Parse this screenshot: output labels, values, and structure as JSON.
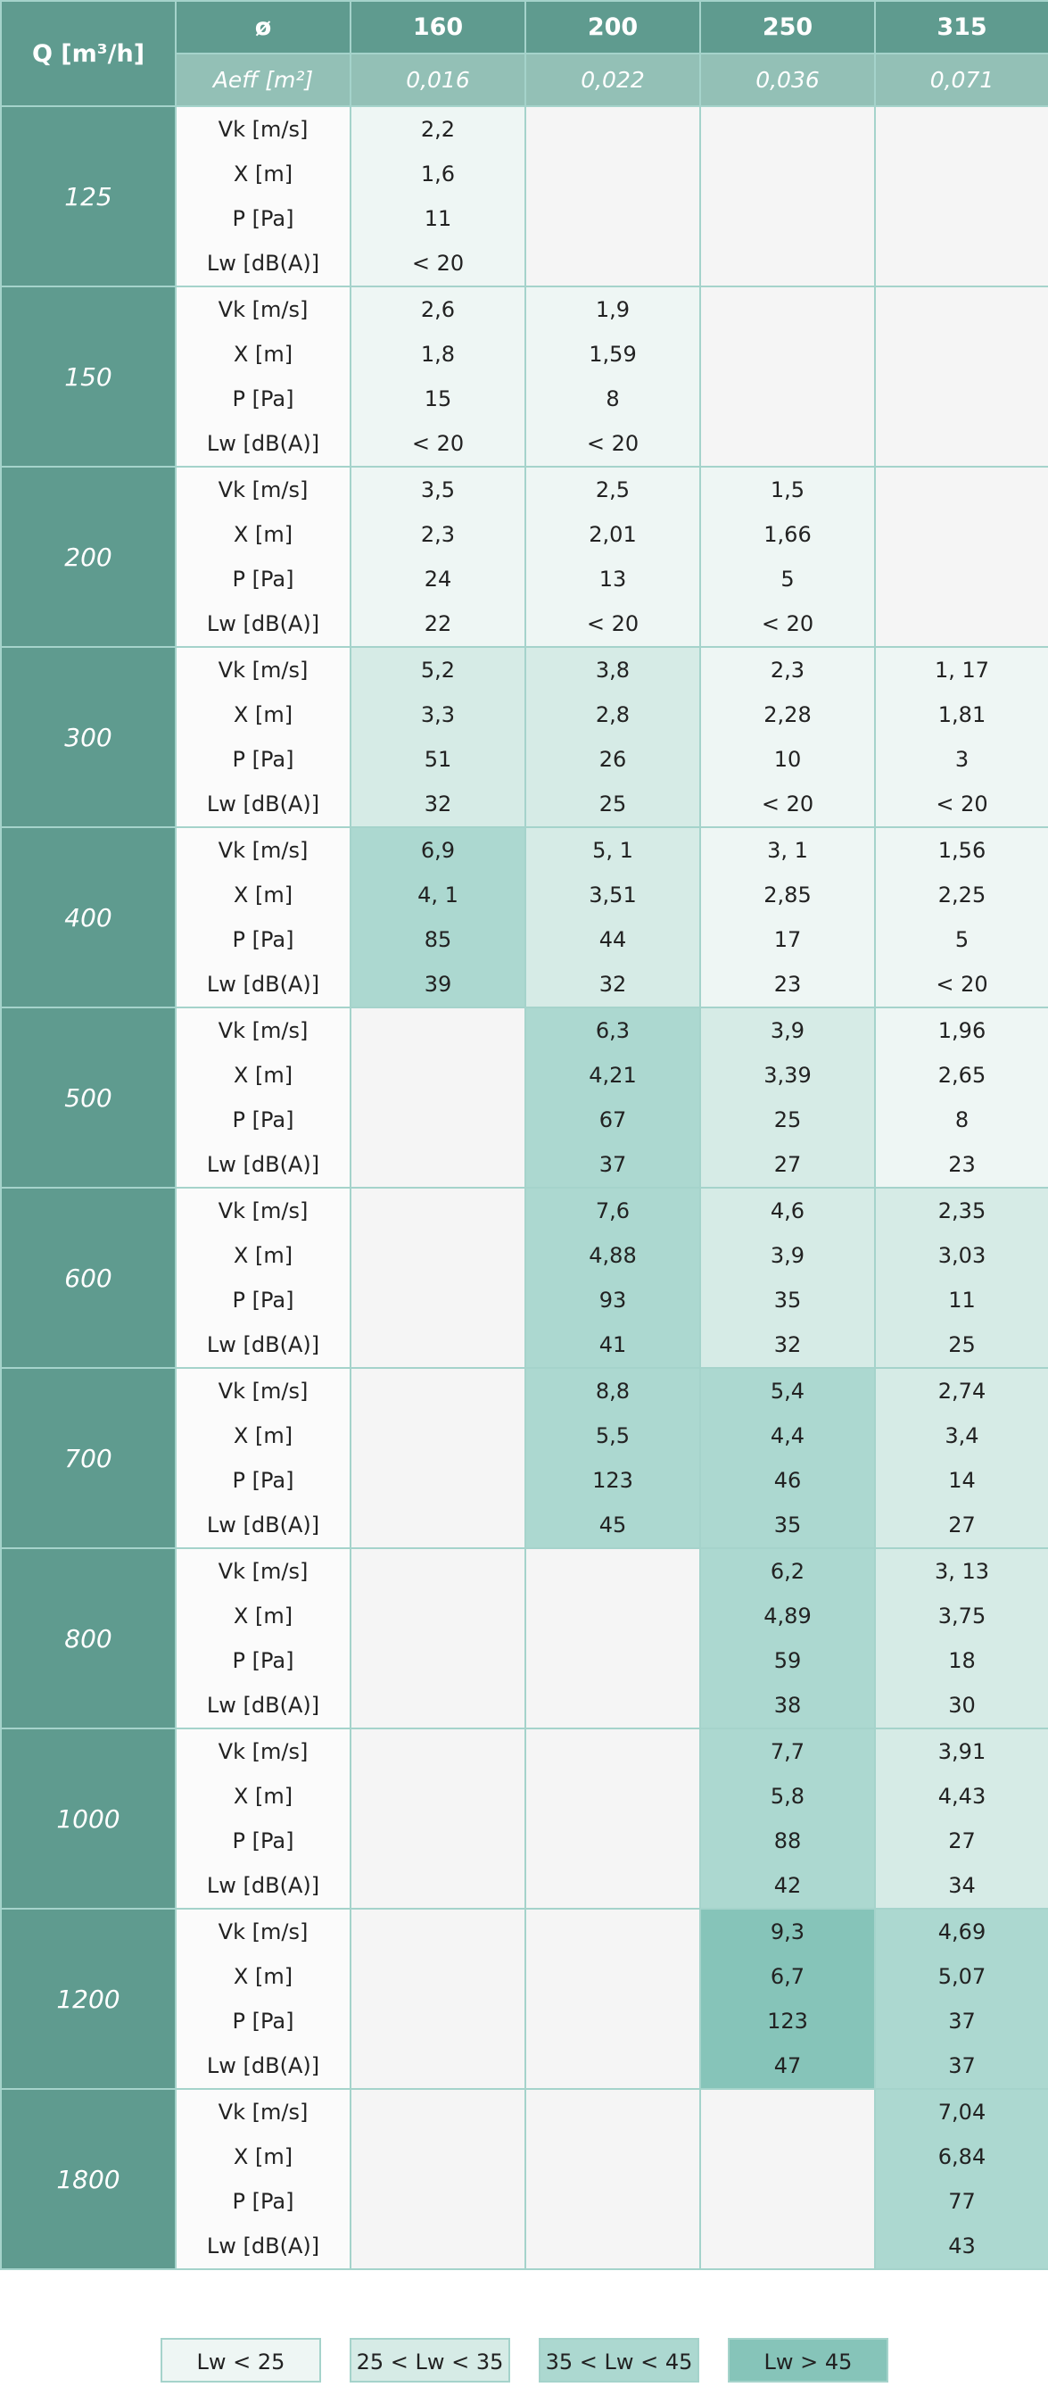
{
  "header": {
    "q_label": "Q [m³/h]",
    "diameter_label": "ø",
    "aeff_label": "Aeff [m²]",
    "diameters": [
      "160",
      "200",
      "250",
      "315"
    ],
    "aeff": [
      "0,016",
      "0,022",
      "0,036",
      "0,071"
    ]
  },
  "row_labels": [
    "Vk [m/s]",
    "X [m]",
    "P [Pa]",
    "Lw [dB(A)]"
  ],
  "legend": [
    {
      "label": "Lw < 25",
      "color": "#eef6f4"
    },
    {
      "label": "25 < Lw < 35",
      "color": "#d6ebe6"
    },
    {
      "label": "35 < Lw < 45",
      "color": "#acd8d0"
    },
    {
      "label": "Lw > 45",
      "color": "#86c4b9"
    }
  ],
  "rows": [
    {
      "q": "125",
      "cells": [
        {
          "level": 0,
          "v": [
            "2,2",
            "1,6",
            "11",
            "< 20"
          ]
        },
        null,
        null,
        null
      ]
    },
    {
      "q": "150",
      "cells": [
        {
          "level": 0,
          "v": [
            "2,6",
            "1,8",
            "15",
            "< 20"
          ]
        },
        {
          "level": 0,
          "v": [
            "1,9",
            "1,59",
            "8",
            "< 20"
          ]
        },
        null,
        null
      ]
    },
    {
      "q": "200",
      "cells": [
        {
          "level": 0,
          "v": [
            "3,5",
            "2,3",
            "24",
            "22"
          ]
        },
        {
          "level": 0,
          "v": [
            "2,5",
            "2,01",
            "13",
            "< 20"
          ]
        },
        {
          "level": 0,
          "v": [
            "1,5",
            "1,66",
            "5",
            "< 20"
          ]
        },
        null
      ]
    },
    {
      "q": "300",
      "cells": [
        {
          "level": 1,
          "v": [
            "5,2",
            "3,3",
            "51",
            "32"
          ]
        },
        {
          "level": 1,
          "v": [
            "3,8",
            "2,8",
            "26",
            "25"
          ]
        },
        {
          "level": 0,
          "v": [
            "2,3",
            "2,28",
            "10",
            "< 20"
          ]
        },
        {
          "level": 0,
          "v": [
            "1, 17",
            "1,81",
            "3",
            "< 20"
          ]
        }
      ]
    },
    {
      "q": "400",
      "cells": [
        {
          "level": 2,
          "v": [
            "6,9",
            "4, 1",
            "85",
            "39"
          ]
        },
        {
          "level": 1,
          "v": [
            "5, 1",
            "3,51",
            "44",
            "32"
          ]
        },
        {
          "level": 0,
          "v": [
            "3, 1",
            "2,85",
            "17",
            "23"
          ]
        },
        {
          "level": 0,
          "v": [
            "1,56",
            "2,25",
            "5",
            "< 20"
          ]
        }
      ]
    },
    {
      "q": "500",
      "cells": [
        null,
        {
          "level": 2,
          "v": [
            "6,3",
            "4,21",
            "67",
            "37"
          ]
        },
        {
          "level": 1,
          "v": [
            "3,9",
            "3,39",
            "25",
            "27"
          ]
        },
        {
          "level": 0,
          "v": [
            "1,96",
            "2,65",
            "8",
            "23"
          ]
        }
      ]
    },
    {
      "q": "600",
      "cells": [
        null,
        {
          "level": 2,
          "v": [
            "7,6",
            "4,88",
            "93",
            "41"
          ]
        },
        {
          "level": 1,
          "v": [
            "4,6",
            "3,9",
            "35",
            "32"
          ]
        },
        {
          "level": 1,
          "v": [
            "2,35",
            "3,03",
            "11",
            "25"
          ]
        }
      ]
    },
    {
      "q": "700",
      "cells": [
        null,
        {
          "level": 2,
          "v": [
            "8,8",
            "5,5",
            "123",
            "45"
          ]
        },
        {
          "level": 2,
          "v": [
            "5,4",
            "4,4",
            "46",
            "35"
          ]
        },
        {
          "level": 1,
          "v": [
            "2,74",
            "3,4",
            "14",
            "27"
          ]
        }
      ]
    },
    {
      "q": "800",
      "cells": [
        null,
        null,
        {
          "level": 2,
          "v": [
            "6,2",
            "4,89",
            "59",
            "38"
          ]
        },
        {
          "level": 1,
          "v": [
            "3, 13",
            "3,75",
            "18",
            "30"
          ]
        }
      ]
    },
    {
      "q": "1000",
      "cells": [
        null,
        null,
        {
          "level": 2,
          "v": [
            "7,7",
            "5,8",
            "88",
            "42"
          ]
        },
        {
          "level": 1,
          "v": [
            "3,91",
            "4,43",
            "27",
            "34"
          ]
        }
      ]
    },
    {
      "q": "1200",
      "cells": [
        null,
        null,
        {
          "level": 3,
          "v": [
            "9,3",
            "6,7",
            "123",
            "47"
          ]
        },
        {
          "level": 2,
          "v": [
            "4,69",
            "5,07",
            "37",
            "37"
          ]
        }
      ]
    },
    {
      "q": "1800",
      "cells": [
        null,
        null,
        null,
        {
          "level": 2,
          "v": [
            "7,04",
            "6,84",
            "77",
            "43"
          ]
        }
      ]
    }
  ]
}
